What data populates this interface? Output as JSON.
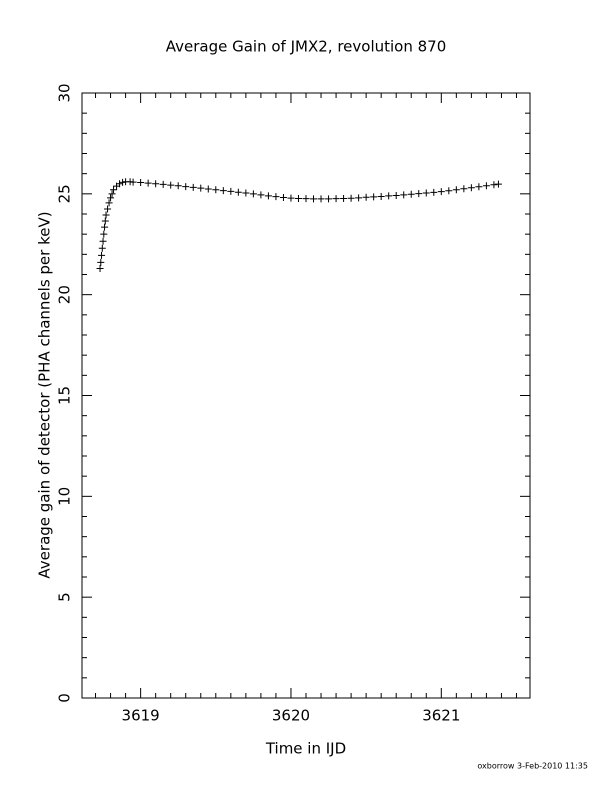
{
  "chart_data": {
    "type": "scatter",
    "title": "Average Gain of JMX2, revolution 870",
    "x_label": "Time in IJD",
    "y_label": "Average gain of detector (PHA channels per keV)",
    "footer": "oxborrow  3-Feb-2010 11:35",
    "marker": "+",
    "color": "#000000",
    "xlim": [
      3618.61,
      3621.59
    ],
    "ylim": [
      0,
      30
    ],
    "xticks": [
      3619,
      3620,
      3621
    ],
    "yticks": [
      0,
      5,
      10,
      15,
      20,
      25,
      30
    ],
    "x_minor_per_major": 10,
    "y_minor_per_major": 5,
    "x": [
      3618.73,
      3618.735,
      3618.74,
      3618.745,
      3618.75,
      3618.755,
      3618.76,
      3618.765,
      3618.77,
      3618.78,
      3618.79,
      3618.8,
      3618.81,
      3618.82,
      3618.84,
      3618.86,
      3618.88,
      3618.9,
      3618.93,
      3618.95,
      3619.0,
      3619.05,
      3619.1,
      3619.15,
      3619.2,
      3619.25,
      3619.3,
      3619.35,
      3619.4,
      3619.45,
      3619.5,
      3619.55,
      3619.6,
      3619.65,
      3619.7,
      3619.75,
      3619.8,
      3619.85,
      3619.9,
      3619.95,
      3620.0,
      3620.05,
      3620.1,
      3620.15,
      3620.2,
      3620.25,
      3620.3,
      3620.35,
      3620.4,
      3620.45,
      3620.5,
      3620.55,
      3620.6,
      3620.65,
      3620.7,
      3620.75,
      3620.8,
      3620.85,
      3620.9,
      3620.95,
      3621.0,
      3621.05,
      3621.1,
      3621.15,
      3621.2,
      3621.25,
      3621.3,
      3621.35,
      3621.38
    ],
    "values": [
      21.3,
      21.6,
      21.95,
      22.3,
      22.65,
      23.0,
      23.35,
      23.65,
      23.95,
      24.25,
      24.55,
      24.8,
      25.0,
      25.2,
      25.38,
      25.5,
      25.57,
      25.6,
      25.6,
      25.58,
      25.56,
      25.53,
      25.5,
      25.47,
      25.43,
      25.4,
      25.36,
      25.32,
      25.28,
      25.24,
      25.2,
      25.16,
      25.12,
      25.08,
      25.04,
      25.0,
      24.95,
      24.9,
      24.86,
      24.82,
      24.79,
      24.77,
      24.76,
      24.75,
      24.75,
      24.75,
      24.76,
      24.77,
      24.78,
      24.8,
      24.83,
      24.85,
      24.87,
      24.9,
      24.92,
      24.95,
      24.98,
      25.01,
      25.04,
      25.07,
      25.11,
      25.15,
      25.2,
      25.25,
      25.3,
      25.35,
      25.4,
      25.45,
      25.48
    ]
  }
}
